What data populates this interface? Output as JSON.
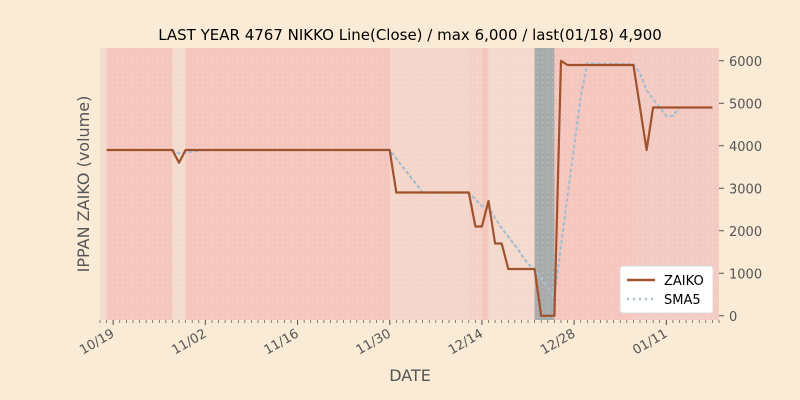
{
  "chart_data": {
    "type": "line",
    "title": "LAST YEAR 4767 NIKKO Line(Close) / max 6,000 / last(01/18) 4,900",
    "xlabel": "DATE",
    "ylabel": "IPPAN ZAIKO (volume)",
    "x_tick_labels": [
      "10/19",
      "11/02",
      "11/16",
      "11/30",
      "12/14",
      "12/28",
      "01/11"
    ],
    "y_ticks": [
      0,
      1000,
      2000,
      3000,
      4000,
      5000,
      6000
    ],
    "y_tick_labels": [
      "0",
      "1000",
      "2000",
      "3000",
      "4000",
      "5000",
      "6000"
    ],
    "ylim": [
      -100,
      6300
    ],
    "xlim": [
      "2022-10-17",
      "2023-01-19"
    ],
    "y_axis_side": "right",
    "legend_position": "lower-right",
    "colors": {
      "background": "#faebd7",
      "plot_background": "#f5c6bd",
      "band_dark": "#a9aaab",
      "band_light": "#f3ddd0",
      "band_mid": "#f4cfc6",
      "zaiko_line": "#a0522d",
      "sma_line": "#a7bed0"
    },
    "series": [
      {
        "name": "ZAIKO",
        "style": "solid",
        "points": [
          [
            "2022-10-18",
            3900
          ],
          [
            "2022-10-28",
            3900
          ],
          [
            "2022-10-29",
            3600
          ],
          [
            "2022-10-30",
            3900
          ],
          [
            "2022-11-30",
            3900
          ],
          [
            "2022-12-01",
            2900
          ],
          [
            "2022-12-12",
            2900
          ],
          [
            "2022-12-13",
            2100
          ],
          [
            "2022-12-14",
            2100
          ],
          [
            "2022-12-15",
            2700
          ],
          [
            "2022-12-16",
            1700
          ],
          [
            "2022-12-17",
            1700
          ],
          [
            "2022-12-18",
            1100
          ],
          [
            "2022-12-22",
            1100
          ],
          [
            "2022-12-23",
            0
          ],
          [
            "2022-12-25",
            0
          ],
          [
            "2022-12-26",
            6000
          ],
          [
            "2022-12-27",
            5900
          ],
          [
            "2023-01-06",
            5900
          ],
          [
            "2023-01-08",
            3900
          ],
          [
            "2023-01-09",
            4900
          ],
          [
            "2023-01-18",
            4900
          ]
        ]
      },
      {
        "name": "SMA5",
        "style": "dotted",
        "points": [
          [
            "2022-10-28",
            3900
          ],
          [
            "2022-10-29",
            3820
          ],
          [
            "2022-10-30",
            3840
          ],
          [
            "2022-10-31",
            3860
          ],
          [
            "2022-11-01",
            3880
          ],
          [
            "2022-11-02",
            3900
          ],
          [
            "2022-11-30",
            3900
          ],
          [
            "2022-12-01",
            3700
          ],
          [
            "2022-12-02",
            3500
          ],
          [
            "2022-12-03",
            3300
          ],
          [
            "2022-12-04",
            3100
          ],
          [
            "2022-12-05",
            2900
          ],
          [
            "2022-12-12",
            2900
          ],
          [
            "2022-12-13",
            2740
          ],
          [
            "2022-12-14",
            2580
          ],
          [
            "2022-12-15",
            2540
          ],
          [
            "2022-12-16",
            2300
          ],
          [
            "2022-12-17",
            2060
          ],
          [
            "2022-12-18",
            1860
          ],
          [
            "2022-12-19",
            1660
          ],
          [
            "2022-12-20",
            1440
          ],
          [
            "2022-12-21",
            1220
          ],
          [
            "2022-12-22",
            1100
          ],
          [
            "2022-12-23",
            880
          ],
          [
            "2022-12-24",
            660
          ],
          [
            "2022-12-25",
            440
          ],
          [
            "2022-12-26",
            1640
          ],
          [
            "2022-12-27",
            2820
          ],
          [
            "2022-12-28",
            3980
          ],
          [
            "2022-12-29",
            5160
          ],
          [
            "2022-12-30",
            5940
          ],
          [
            "2023-01-06",
            5920
          ],
          [
            "2023-01-07",
            5700
          ],
          [
            "2023-01-08",
            5300
          ],
          [
            "2023-01-09",
            5100
          ],
          [
            "2023-01-10",
            4900
          ],
          [
            "2023-01-11",
            4700
          ],
          [
            "2023-01-12",
            4700
          ],
          [
            "2023-01-13",
            4900
          ]
        ]
      }
    ]
  }
}
